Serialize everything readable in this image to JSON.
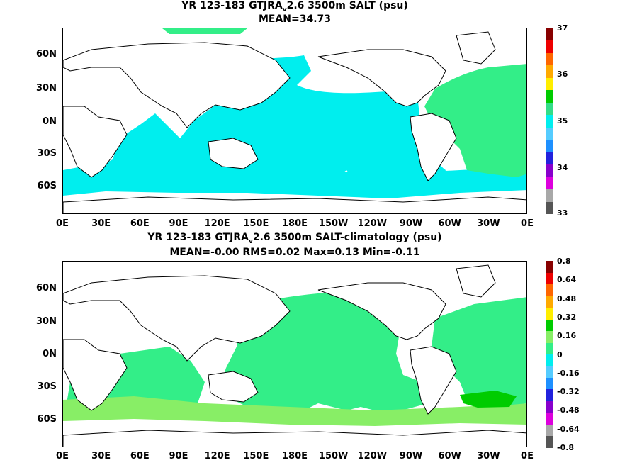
{
  "panel1": {
    "title_part1": "YR 123-183 GTJRA",
    "title_sub": "v",
    "title_part2": "2.6 3500m SALT (psu)",
    "subtitle": "MEAN=34.73",
    "colorbar_labels": [
      "37",
      "36",
      "35",
      "34",
      "33"
    ],
    "colorbar_colors": [
      "#555555",
      "#a8a8a8",
      "#dd00dd",
      "#8800cc",
      "#2222dd",
      "#1e90ff",
      "#55ccff",
      "#00eeee",
      "#33dd88",
      "#00cc00",
      "#ffee00",
      "#ffaa00",
      "#ff6600",
      "#ee0000",
      "#880000"
    ],
    "field_colors": {
      "ocean": "#00eeee",
      "atlantic": "#33ee88",
      "land": "#ffffff"
    }
  },
  "panel2": {
    "title_part1": "YR 123-183 GTJRA",
    "title_sub": "v",
    "title_part2": "2.6 3500m SALT-climatology (psu)",
    "subtitle": "MEAN=-0.00   RMS=0.02   Max=0.13   Min=-0.11",
    "colorbar_labels": [
      "0.8",
      "0.64",
      "0.48",
      "0.32",
      "0.16",
      "0",
      "-0.16",
      "-0.32",
      "-0.48",
      "-0.64",
      "-0.8"
    ],
    "colorbar_colors": [
      "#555555",
      "#a8a8a8",
      "#dd00dd",
      "#8800cc",
      "#2222dd",
      "#1e90ff",
      "#55ccff",
      "#00eeee",
      "#33ee88",
      "#88ee66",
      "#00cc00",
      "#ffee00",
      "#ffaa00",
      "#ff6600",
      "#ee0000",
      "#880000"
    ],
    "field_colors": {
      "near_zero": "#33ee88",
      "slight_pos": "#88ee66",
      "positive": "#00cc00",
      "land": "#ffffff"
    }
  },
  "axes": {
    "lat_ticks": [
      "60N",
      "30N",
      "0N",
      "30S",
      "60S"
    ],
    "lon_ticks": [
      "0E",
      "30E",
      "60E",
      "90E",
      "120E",
      "150E",
      "180E",
      "150W",
      "120W",
      "90W",
      "60W",
      "30W",
      "0E"
    ]
  }
}
